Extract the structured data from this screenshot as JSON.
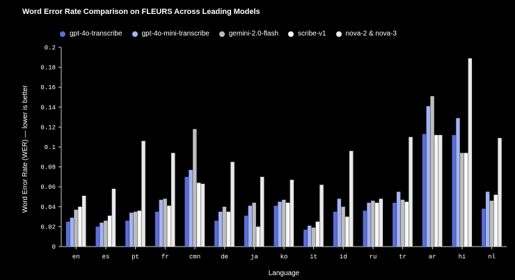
{
  "chart_data": {
    "type": "bar",
    "title": "Word Error Rate Comparison on FLEURS Across Leading Models",
    "xlabel": "Language",
    "ylabel": "Word Error Rate (WER) — lower is better",
    "ylim": [
      0,
      0.2
    ],
    "yticks": [
      "0",
      "0.02",
      "0.04",
      "0.06",
      "0.08",
      "0.1",
      "0.12",
      "0.14",
      "0.16",
      "0.18",
      "0.2"
    ],
    "legend_position": "top-left",
    "grid": false,
    "categories": [
      "en",
      "es",
      "pt",
      "fr",
      "cmn",
      "de",
      "ja",
      "ko",
      "it",
      "id",
      "ru",
      "tr",
      "ar",
      "hi",
      "nl"
    ],
    "series": [
      {
        "name": "gpt-4o-transcribe",
        "color": "#5b6fd6",
        "values": [
          0.025,
          0.02,
          0.026,
          0.035,
          0.07,
          0.026,
          0.031,
          0.041,
          0.017,
          0.035,
          0.036,
          0.044,
          0.113,
          0.112,
          0.038
        ]
      },
      {
        "name": "gpt-4o-mini-transcribe",
        "color": "#a3b3f5",
        "values": [
          0.029,
          0.024,
          0.034,
          0.047,
          0.077,
          0.035,
          0.041,
          0.045,
          0.021,
          0.048,
          0.044,
          0.055,
          0.141,
          0.129,
          0.055
        ]
      },
      {
        "name": "gemini-2.0-flash",
        "color": "#bdbdbd",
        "values": [
          0.037,
          0.026,
          0.035,
          0.048,
          0.118,
          0.04,
          0.044,
          0.047,
          0.019,
          0.04,
          0.046,
          0.047,
          0.151,
          0.094,
          0.046
        ]
      },
      {
        "name": "scribe-v1",
        "color": "#f7f7f7",
        "values": [
          0.04,
          0.031,
          0.036,
          0.041,
          0.064,
          0.035,
          0.02,
          0.044,
          0.025,
          0.03,
          0.044,
          0.045,
          0.112,
          0.094,
          0.052
        ]
      },
      {
        "name": "nova-2 & nova-3",
        "color": "#e9e9e9",
        "values": [
          0.051,
          0.058,
          0.106,
          0.094,
          0.063,
          0.085,
          0.07,
          0.067,
          0.062,
          0.096,
          0.048,
          0.11,
          0.112,
          0.189,
          0.109
        ]
      }
    ]
  }
}
